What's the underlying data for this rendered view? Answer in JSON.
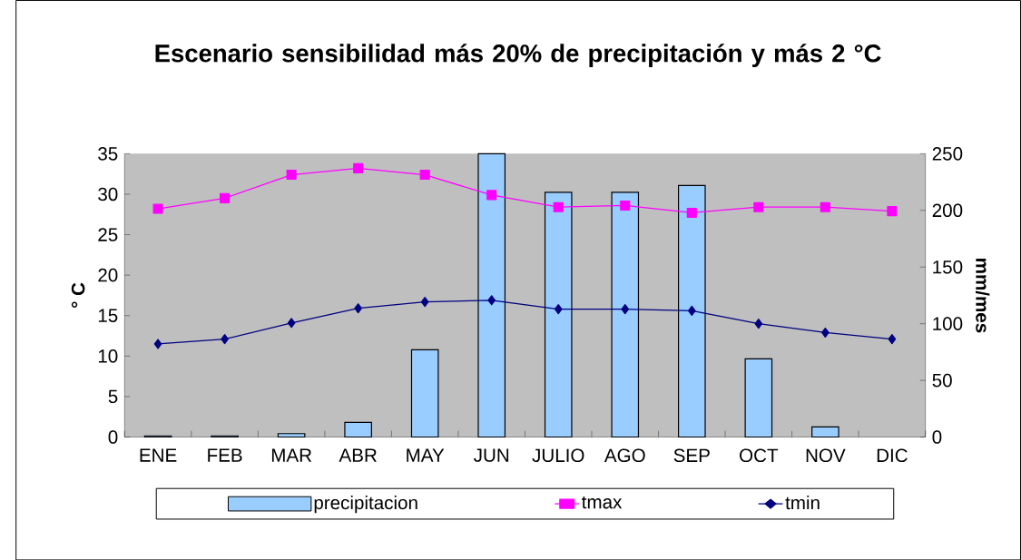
{
  "chart_data": {
    "type": "bar",
    "title": "Escenario sensibilidad más 20% de precipitación y más 2 °C",
    "ylabel": "° C",
    "y2label": "mm/mes",
    "categories": [
      "ENE",
      "FEB",
      "MAR",
      "ABR",
      "MAY",
      "JUN",
      "JULIO",
      "AGO",
      "SEP",
      "OCT",
      "NOV",
      "DIC"
    ],
    "series": [
      {
        "name": "precipitacion",
        "axis": "y2",
        "color": "#99ccff",
        "values": [
          1,
          1,
          3,
          13,
          77,
          250,
          216,
          216,
          222,
          69,
          9,
          null
        ]
      },
      {
        "name": "tmax",
        "type": "line",
        "marker": "square",
        "color": "#ff00ff",
        "values": [
          28.2,
          29.5,
          32.4,
          33.2,
          32.4,
          29.9,
          28.4,
          28.6,
          27.7,
          28.4,
          28.4,
          27.9
        ]
      },
      {
        "name": "tmin",
        "type": "line",
        "marker": "diamond",
        "color": "#000080",
        "values": [
          11.5,
          12.1,
          14.1,
          15.9,
          16.7,
          16.9,
          15.8,
          15.8,
          15.6,
          14.0,
          12.9,
          12.1
        ]
      }
    ],
    "ylim": [
      0,
      35
    ],
    "yticks": [
      0,
      5,
      10,
      15,
      20,
      25,
      30,
      35
    ],
    "y2lim": [
      0,
      250
    ],
    "y2ticks": [
      0,
      50,
      100,
      150,
      200,
      250
    ],
    "legend": "bottom"
  }
}
